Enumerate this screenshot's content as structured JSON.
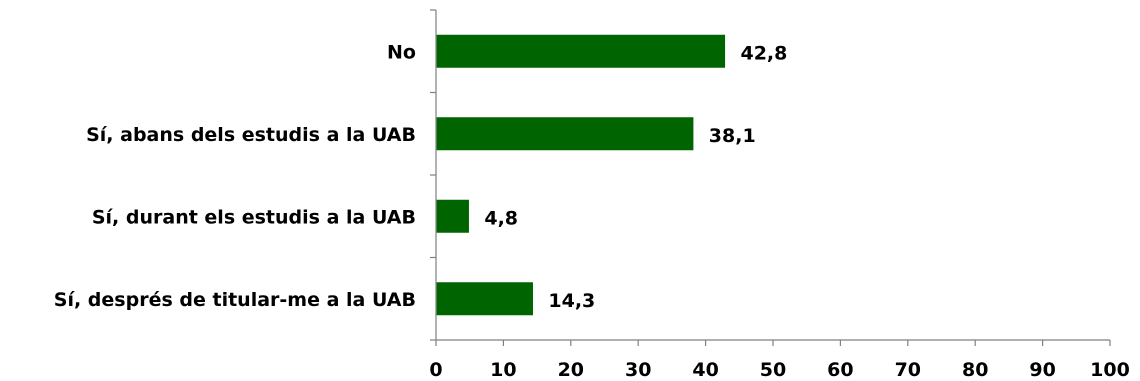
{
  "chart_data": {
    "type": "bar",
    "orientation": "horizontal",
    "categories": [
      "No",
      "Sí, abans dels estudis a la UAB",
      "Sí, durant els estudis a la UAB",
      "Sí, després de titular-me a la UAB"
    ],
    "values": [
      42.8,
      38.1,
      4.8,
      14.3
    ],
    "value_labels": [
      "42,8",
      "38,1",
      "4,8",
      "14,3"
    ],
    "xlim": [
      0,
      100
    ],
    "xticks": [
      0,
      10,
      20,
      30,
      40,
      50,
      60,
      70,
      80,
      90,
      100
    ],
    "xtick_labels": [
      "0",
      "10",
      "20",
      "30",
      "40",
      "50",
      "60",
      "70",
      "80",
      "90",
      "100"
    ],
    "grid": false,
    "legend": "none",
    "bar_color": "#006400",
    "title": "",
    "xlabel": "",
    "ylabel": ""
  }
}
